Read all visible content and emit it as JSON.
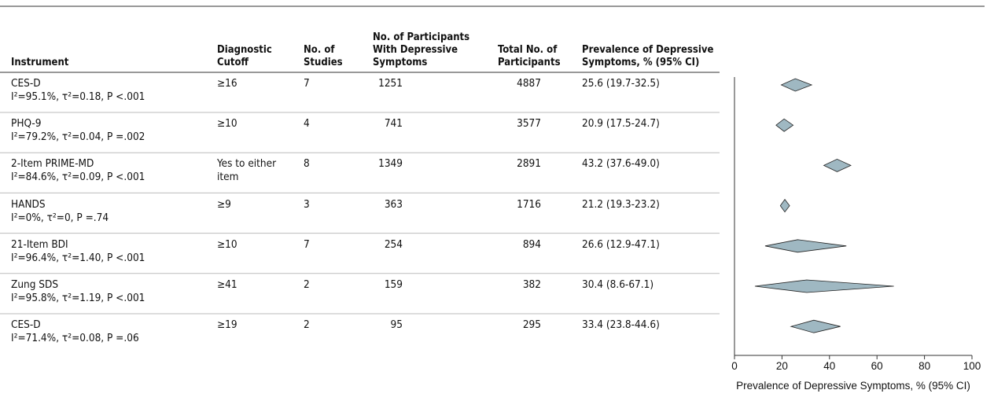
{
  "chart_data": {
    "type": "forest",
    "columns": [
      "Instrument",
      "Diagnostic Cutoff",
      "No. of Studies",
      "No. of Participants With Depressive Symptoms",
      "Total No. of Participants",
      "Prevalence of Depressive Symptoms, % (95% CI)"
    ],
    "rows": [
      {
        "instrument": "CES-D",
        "heterogeneity": "I²=95.1%, τ²=0.18, P <.001",
        "cutoff": "≥16",
        "studies": 7,
        "with_symptoms": 1251,
        "total": 4887,
        "estimate": 25.6,
        "lower": 19.7,
        "upper": 32.5,
        "value_label": "25.6 (19.7-32.5)"
      },
      {
        "instrument": "PHQ-9",
        "heterogeneity": "I²=79.2%, τ²=0.04, P =.002",
        "cutoff": "≥10",
        "studies": 4,
        "with_symptoms": 741,
        "total": 3577,
        "estimate": 20.9,
        "lower": 17.5,
        "upper": 24.7,
        "value_label": "20.9 (17.5-24.7)"
      },
      {
        "instrument": "2-Item PRIME-MD",
        "heterogeneity": "I²=84.6%, τ²=0.09, P <.001",
        "cutoff": "Yes to either item",
        "studies": 8,
        "with_symptoms": 1349,
        "total": 2891,
        "estimate": 43.2,
        "lower": 37.6,
        "upper": 49.0,
        "value_label": "43.2 (37.6-49.0)"
      },
      {
        "instrument": "HANDS",
        "heterogeneity": "I²=0%, τ²=0, P =.74",
        "cutoff": "≥9",
        "studies": 3,
        "with_symptoms": 363,
        "total": 1716,
        "estimate": 21.2,
        "lower": 19.3,
        "upper": 23.2,
        "value_label": "21.2 (19.3-23.2)"
      },
      {
        "instrument": "21-Item BDI",
        "heterogeneity": "I²=96.4%, τ²=1.40, P <.001",
        "cutoff": "≥10",
        "studies": 7,
        "with_symptoms": 254,
        "total": 894,
        "estimate": 26.6,
        "lower": 12.9,
        "upper": 47.1,
        "value_label": "26.6 (12.9-47.1)"
      },
      {
        "instrument": "Zung SDS",
        "heterogeneity": "I²=95.8%, τ²=1.19, P <.001",
        "cutoff": "≥41",
        "studies": 2,
        "with_symptoms": 159,
        "total": 382,
        "estimate": 30.4,
        "lower": 8.6,
        "upper": 67.1,
        "value_label": "30.4 (8.6-67.1)"
      },
      {
        "instrument": "CES-D",
        "heterogeneity": "I²=71.4%, τ²=0.08, P =.06",
        "cutoff": "≥19",
        "studies": 2,
        "with_symptoms": 95,
        "total": 295,
        "estimate": 33.4,
        "lower": 23.8,
        "upper": 44.6,
        "value_label": "33.4 (23.8-44.6)"
      }
    ],
    "color": "#9fb8c2",
    "xlim": [
      0,
      100
    ],
    "xticks": [
      0,
      20,
      40,
      60,
      80,
      100
    ],
    "xlabel": "Prevalence of Depressive Symptoms, % (95% CI)"
  }
}
